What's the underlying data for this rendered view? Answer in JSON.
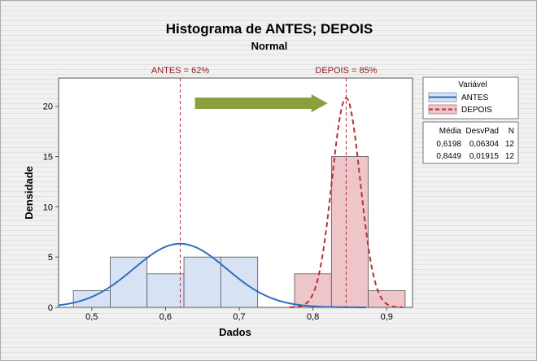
{
  "chart_data": {
    "type": "histogram",
    "title": "Histograma de ANTES; DEPOIS",
    "subtitle": "Normal",
    "xlabel": "Dados",
    "ylabel": "Densidade",
    "xlim": [
      0.455,
      0.935
    ],
    "ylim": [
      0,
      22
    ],
    "xticks": [
      0.5,
      0.6,
      0.7,
      0.8,
      0.9
    ],
    "xtick_labels": [
      "0,5",
      "0,6",
      "0,7",
      "0,8",
      "0,9"
    ],
    "yticks": [
      0,
      5,
      10,
      15,
      20
    ],
    "ytick_labels": [
      "0",
      "5",
      "10",
      "15",
      "20"
    ],
    "bin_width": 0.05,
    "series": [
      {
        "name": "ANTES",
        "color": "#2f6fbd",
        "fill": "#d7e3f5",
        "line_style": "solid",
        "bins": [
          {
            "start": 0.475,
            "end": 0.525,
            "density": 1.667
          },
          {
            "start": 0.525,
            "end": 0.575,
            "density": 5.0
          },
          {
            "start": 0.575,
            "end": 0.625,
            "density": 3.333
          },
          {
            "start": 0.625,
            "end": 0.675,
            "density": 5.0
          },
          {
            "start": 0.675,
            "end": 0.725,
            "density": 5.0
          }
        ],
        "mean": 0.6198,
        "stdev": 0.06304,
        "n": 12
      },
      {
        "name": "DEPOIS",
        "color": "#b5303a",
        "fill": "#eec5c8",
        "line_style": "dashed",
        "bins": [
          {
            "start": 0.775,
            "end": 0.825,
            "density": 3.333
          },
          {
            "start": 0.825,
            "end": 0.875,
            "density": 15.0
          },
          {
            "start": 0.875,
            "end": 0.925,
            "density": 1.667
          }
        ],
        "mean": 0.8449,
        "stdev": 0.01915,
        "n": 12
      }
    ],
    "reference_lines": [
      {
        "x": 0.62,
        "label": "ANTES = 62%"
      },
      {
        "x": 0.845,
        "label": "DEPOIS = 85%"
      }
    ],
    "annotation_arrow": {
      "from": 0.64,
      "to": 0.82,
      "y": 20.3,
      "color": "#8aa03c"
    },
    "legend": {
      "title": "Variável",
      "position": "right",
      "stats_headers": [
        "Média",
        "DesvPad",
        "N"
      ],
      "stats_rows": [
        [
          "0,6198",
          "0,06304",
          "12"
        ],
        [
          "0,8449",
          "0,01915",
          "12"
        ]
      ]
    }
  }
}
